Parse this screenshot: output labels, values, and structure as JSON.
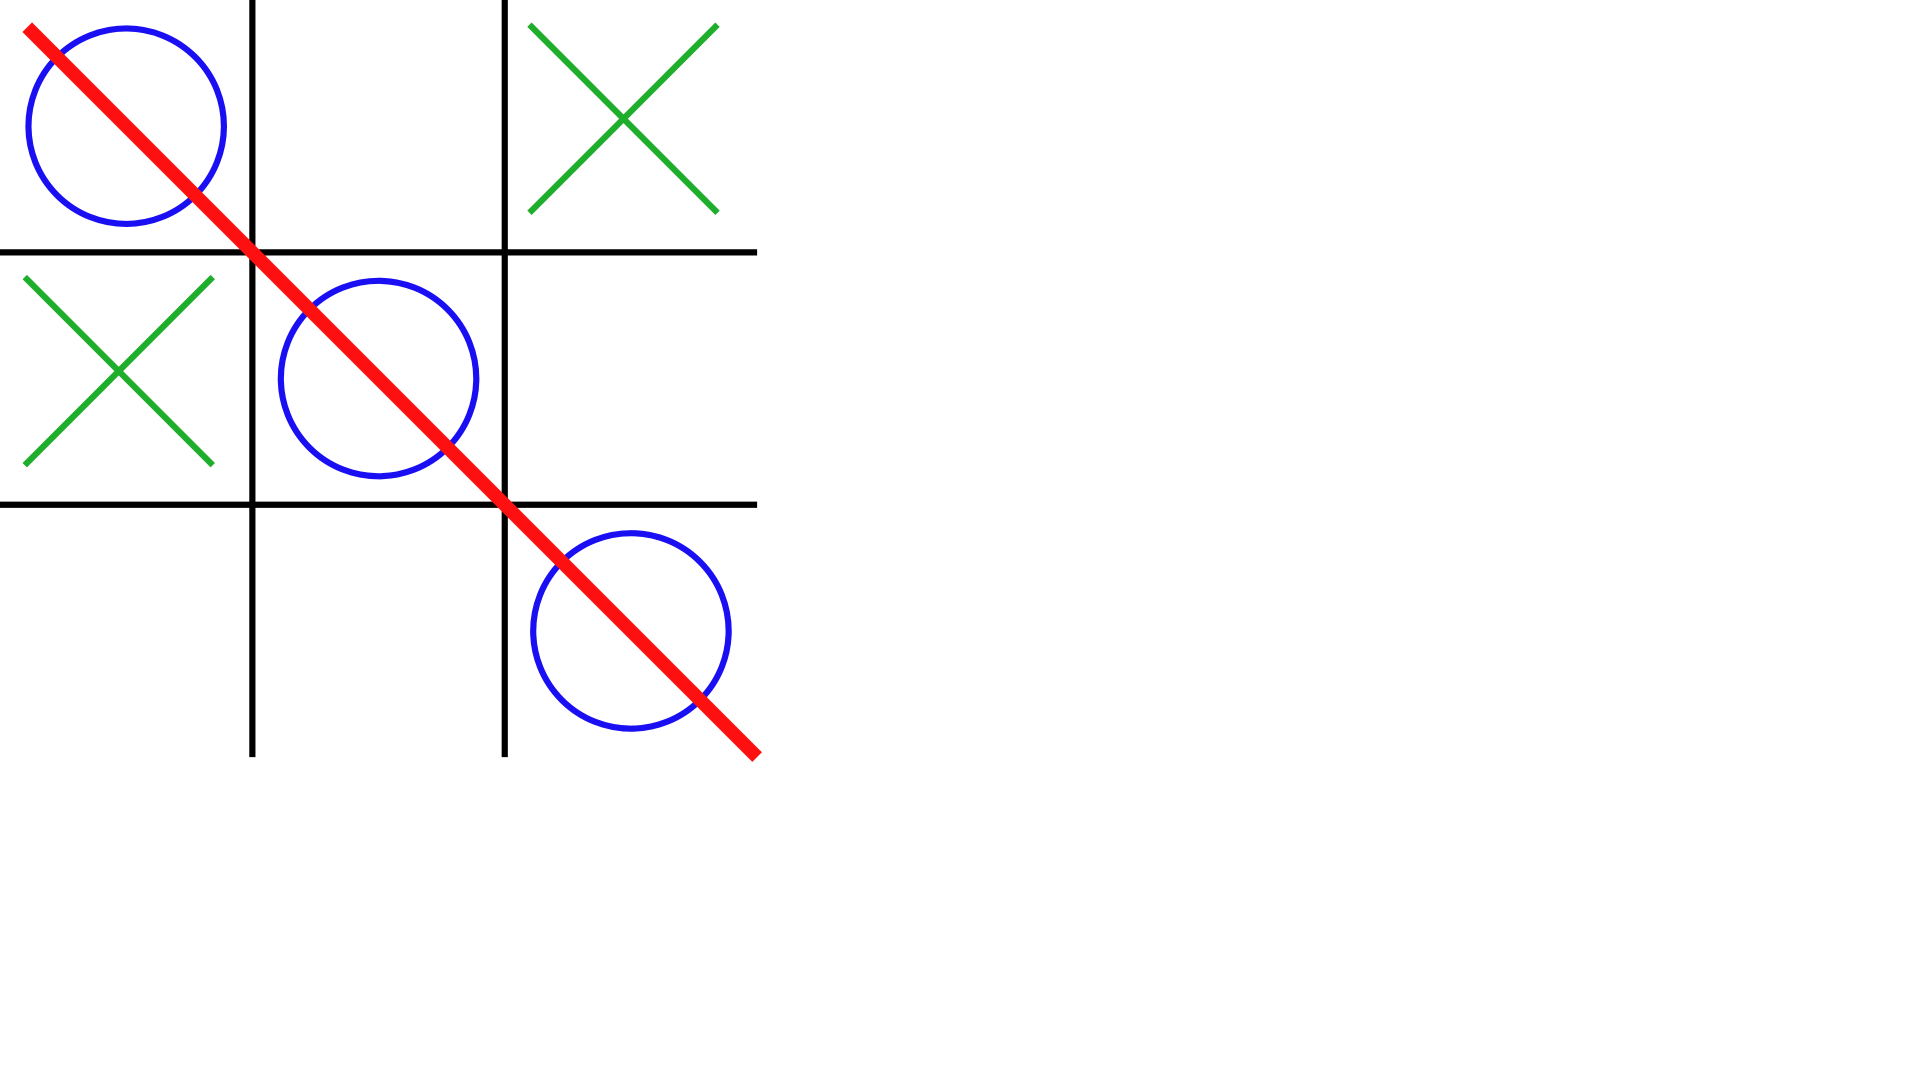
{
  "game": {
    "type": "tic-tac-toe",
    "board": [
      [
        "O",
        "",
        "X"
      ],
      [
        "X",
        "O",
        ""
      ],
      [
        "",
        "",
        "O"
      ]
    ],
    "winner": "O",
    "winning_line": "main-diagonal",
    "winning_cells": [
      [
        0,
        0
      ],
      [
        1,
        1
      ],
      [
        2,
        2
      ]
    ]
  },
  "colors": {
    "background": "#ffffff",
    "grid": "#000000",
    "x_mark": "#1eae2b",
    "o_mark": "#1a0ff2",
    "win_line": "#ff1010"
  }
}
